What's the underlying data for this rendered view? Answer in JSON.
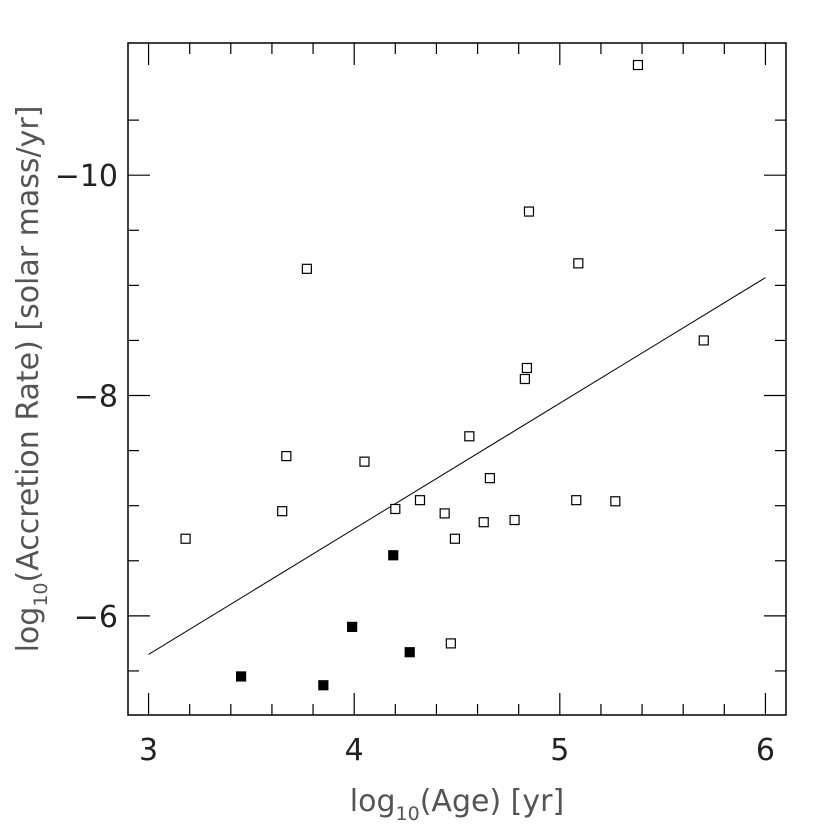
{
  "chart_data": {
    "type": "scatter",
    "title": "",
    "xlabel": {
      "prefix": "log",
      "sub": "10",
      "suffix": "(Age)  [yr]"
    },
    "ylabel": {
      "prefix": "log",
      "sub": "10",
      "suffix": "(Accretion Rate)  [solar mass/yr]"
    },
    "xlim": [
      2.9,
      6.1
    ],
    "ylim": [
      -5.1,
      -11.2
    ],
    "x_ticks": [
      3,
      4,
      5,
      6
    ],
    "x_tick_labels": [
      "3",
      "4",
      "5",
      "6"
    ],
    "y_ticks": [
      -6,
      -8,
      -10
    ],
    "y_tick_labels": [
      "−6",
      "−8",
      "−10"
    ],
    "grid": false,
    "legend": "none",
    "series": [
      {
        "marker": "open-square",
        "x": [
          3.18,
          3.65,
          3.67,
          3.77,
          4.05,
          4.2,
          4.32,
          4.44,
          4.47,
          4.49,
          4.56,
          4.63,
          4.66,
          4.78,
          4.83,
          4.84,
          4.85,
          5.08,
          5.09,
          5.27,
          5.38,
          5.7
        ],
        "y": [
          -6.7,
          -6.95,
          -7.45,
          -9.15,
          -7.4,
          -6.97,
          -7.05,
          -6.93,
          -5.75,
          -6.7,
          -7.63,
          -6.85,
          -7.25,
          -6.87,
          -8.15,
          -8.25,
          -9.67,
          -7.05,
          -9.2,
          -7.04,
          -11.0,
          -8.5
        ]
      },
      {
        "marker": "filled-square",
        "x": [
          3.45,
          3.85,
          3.99,
          4.19,
          4.27
        ],
        "y": [
          -5.45,
          -5.37,
          -5.9,
          -6.55,
          -5.67
        ]
      }
    ],
    "fit_line": {
      "x": [
        3.0,
        6.0
      ],
      "y": [
        -5.65,
        -9.07
      ]
    }
  }
}
